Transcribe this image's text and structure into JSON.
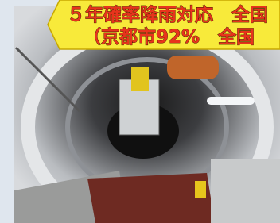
{
  "caption": {
    "line1": "５年確率降雨対応　全国",
    "line2": "（京都市92%　全国"
  }
}
